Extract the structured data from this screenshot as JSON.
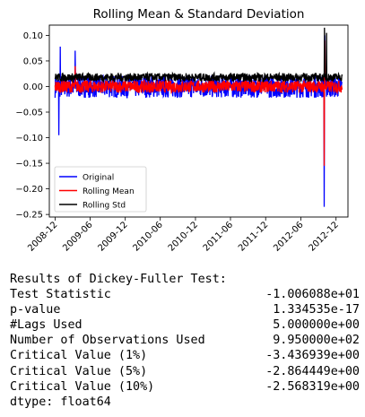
{
  "chart_data": {
    "type": "line",
    "title": "Rolling Mean & Standard Deviation",
    "xlabel": "",
    "ylabel": "",
    "x_ticks": [
      "2008-12",
      "2009-06",
      "2009-12",
      "2010-06",
      "2010-12",
      "2011-06",
      "2011-12",
      "2012-06",
      "2012-12"
    ],
    "x_range": [
      "2008-11-01",
      "2013-02-01"
    ],
    "y_ticks": [
      "0.10",
      "0.05",
      "0.00",
      "−0.05",
      "−0.10",
      "−0.15",
      "−0.20",
      "−0.25"
    ],
    "ylim": [
      -0.255,
      0.12
    ],
    "grid": false,
    "legend_position": "lower-left",
    "series": [
      {
        "name": "Original",
        "color": "#0000ff",
        "mean": 0.0,
        "noise": 0.022,
        "spikes": [
          {
            "x": "2012-10-01",
            "y": -0.235
          },
          {
            "x": "2012-10-03",
            "y": 0.1
          },
          {
            "x": "2008-12-20",
            "y": -0.095
          },
          {
            "x": "2008-12-28",
            "y": 0.078
          },
          {
            "x": "2009-03-15",
            "y": 0.07
          }
        ]
      },
      {
        "name": "Rolling Mean",
        "color": "#ff0000",
        "mean": 0.0,
        "noise": 0.012,
        "spikes": [
          {
            "x": "2012-10-01",
            "y": -0.155
          },
          {
            "x": "2012-10-03",
            "y": 0.09
          },
          {
            "x": "2009-03-15",
            "y": 0.04
          }
        ]
      },
      {
        "name": "Rolling Std",
        "color": "#000000",
        "mean": 0.018,
        "noise": 0.008,
        "spikes": [
          {
            "x": "2012-10-02",
            "y": 0.115
          },
          {
            "x": "2012-10-12",
            "y": 0.105
          }
        ]
      }
    ]
  },
  "results": {
    "header": "Results of Dickey-Fuller Test:",
    "rows": [
      {
        "label": "Test Statistic",
        "value": "-1.006088e+01"
      },
      {
        "label": "p-value",
        "value": "1.334535e-17"
      },
      {
        "label": "#Lags Used",
        "value": "5.000000e+00"
      },
      {
        "label": "Number of Observations Used",
        "value": "9.950000e+02"
      },
      {
        "label": "Critical Value (1%)",
        "value": "-3.436939e+00"
      },
      {
        "label": "Critical Value (5%)",
        "value": "-2.864449e+00"
      },
      {
        "label": "Critical Value (10%)",
        "value": "-2.568319e+00"
      }
    ],
    "dtype": "dtype: float64"
  }
}
